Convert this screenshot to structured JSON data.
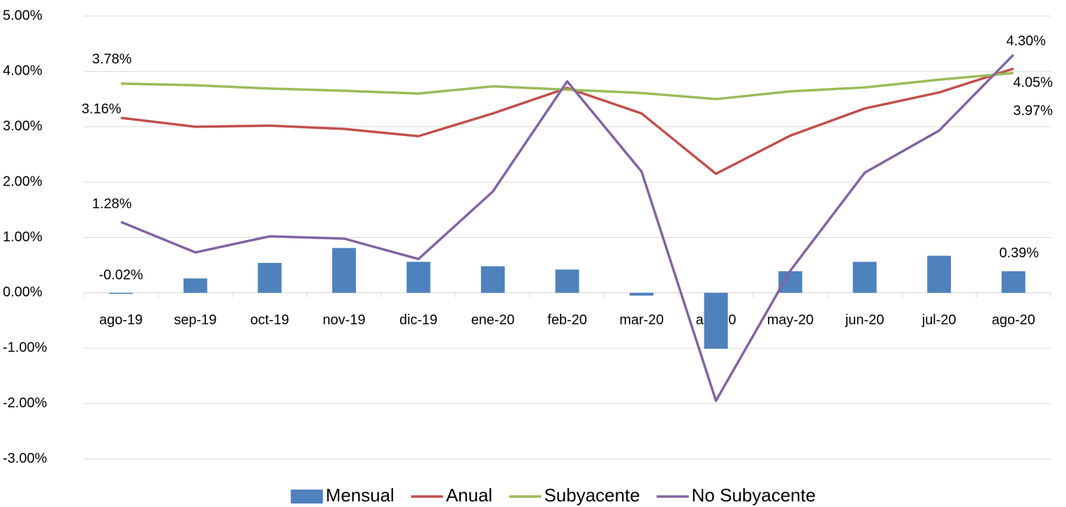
{
  "chart_data": {
    "type": "bar-line",
    "categories": [
      "ago-19",
      "sep-19",
      "oct-19",
      "nov-19",
      "dic-19",
      "ene-20",
      "feb-20",
      "mar-20",
      "abr-20",
      "may-20",
      "jun-20",
      "jul-20",
      "ago-20"
    ],
    "ylim": [
      -3,
      5
    ],
    "yticks": [
      {
        "value": -3,
        "label": "-3.00%"
      },
      {
        "value": -2,
        "label": "-2.00%"
      },
      {
        "value": -1,
        "label": "-1.00%"
      },
      {
        "value": 0,
        "label": "0.00%"
      },
      {
        "value": 1,
        "label": "1.00%"
      },
      {
        "value": 2,
        "label": "2.00%"
      },
      {
        "value": 3,
        "label": "3.00%"
      },
      {
        "value": 4,
        "label": "4.00%"
      },
      {
        "value": 5,
        "label": "5.00%"
      }
    ],
    "grid": true,
    "legend": "bottom",
    "series": [
      {
        "name": "Mensual",
        "type": "bar",
        "color": "#4f81bd",
        "values": [
          -0.02,
          0.26,
          0.54,
          0.81,
          0.56,
          0.48,
          0.42,
          -0.05,
          -1.01,
          0.39,
          0.56,
          0.67,
          0.39
        ],
        "value_labels": [
          "-0.02%",
          null,
          null,
          null,
          null,
          null,
          null,
          null,
          null,
          null,
          null,
          null,
          "0.39%"
        ]
      },
      {
        "name": "Anual",
        "type": "line",
        "color": "#c0504d",
        "values": [
          3.16,
          3.0,
          3.02,
          2.96,
          2.83,
          3.24,
          3.7,
          3.24,
          2.15,
          2.84,
          3.33,
          3.62,
          4.05
        ],
        "value_labels": [
          "3.16%",
          null,
          null,
          null,
          null,
          null,
          null,
          null,
          null,
          null,
          null,
          null,
          "4.05%"
        ]
      },
      {
        "name": "Subyacente",
        "type": "line",
        "color": "#9bbb59",
        "values": [
          3.78,
          3.75,
          3.69,
          3.65,
          3.6,
          3.73,
          3.67,
          3.61,
          3.5,
          3.64,
          3.71,
          3.85,
          3.97
        ],
        "value_labels": [
          "3.78%",
          null,
          null,
          null,
          null,
          null,
          null,
          null,
          null,
          null,
          null,
          null,
          "3.97%"
        ]
      },
      {
        "name": "No Subyacente",
        "type": "line",
        "color": "#8064a2",
        "values": [
          1.28,
          0.73,
          1.02,
          0.98,
          0.61,
          1.83,
          3.82,
          2.19,
          -1.95,
          0.4,
          2.17,
          2.93,
          4.3
        ],
        "value_labels": [
          "1.28%",
          null,
          null,
          null,
          null,
          null,
          null,
          null,
          null,
          null,
          null,
          null,
          "4.30%"
        ]
      }
    ]
  }
}
